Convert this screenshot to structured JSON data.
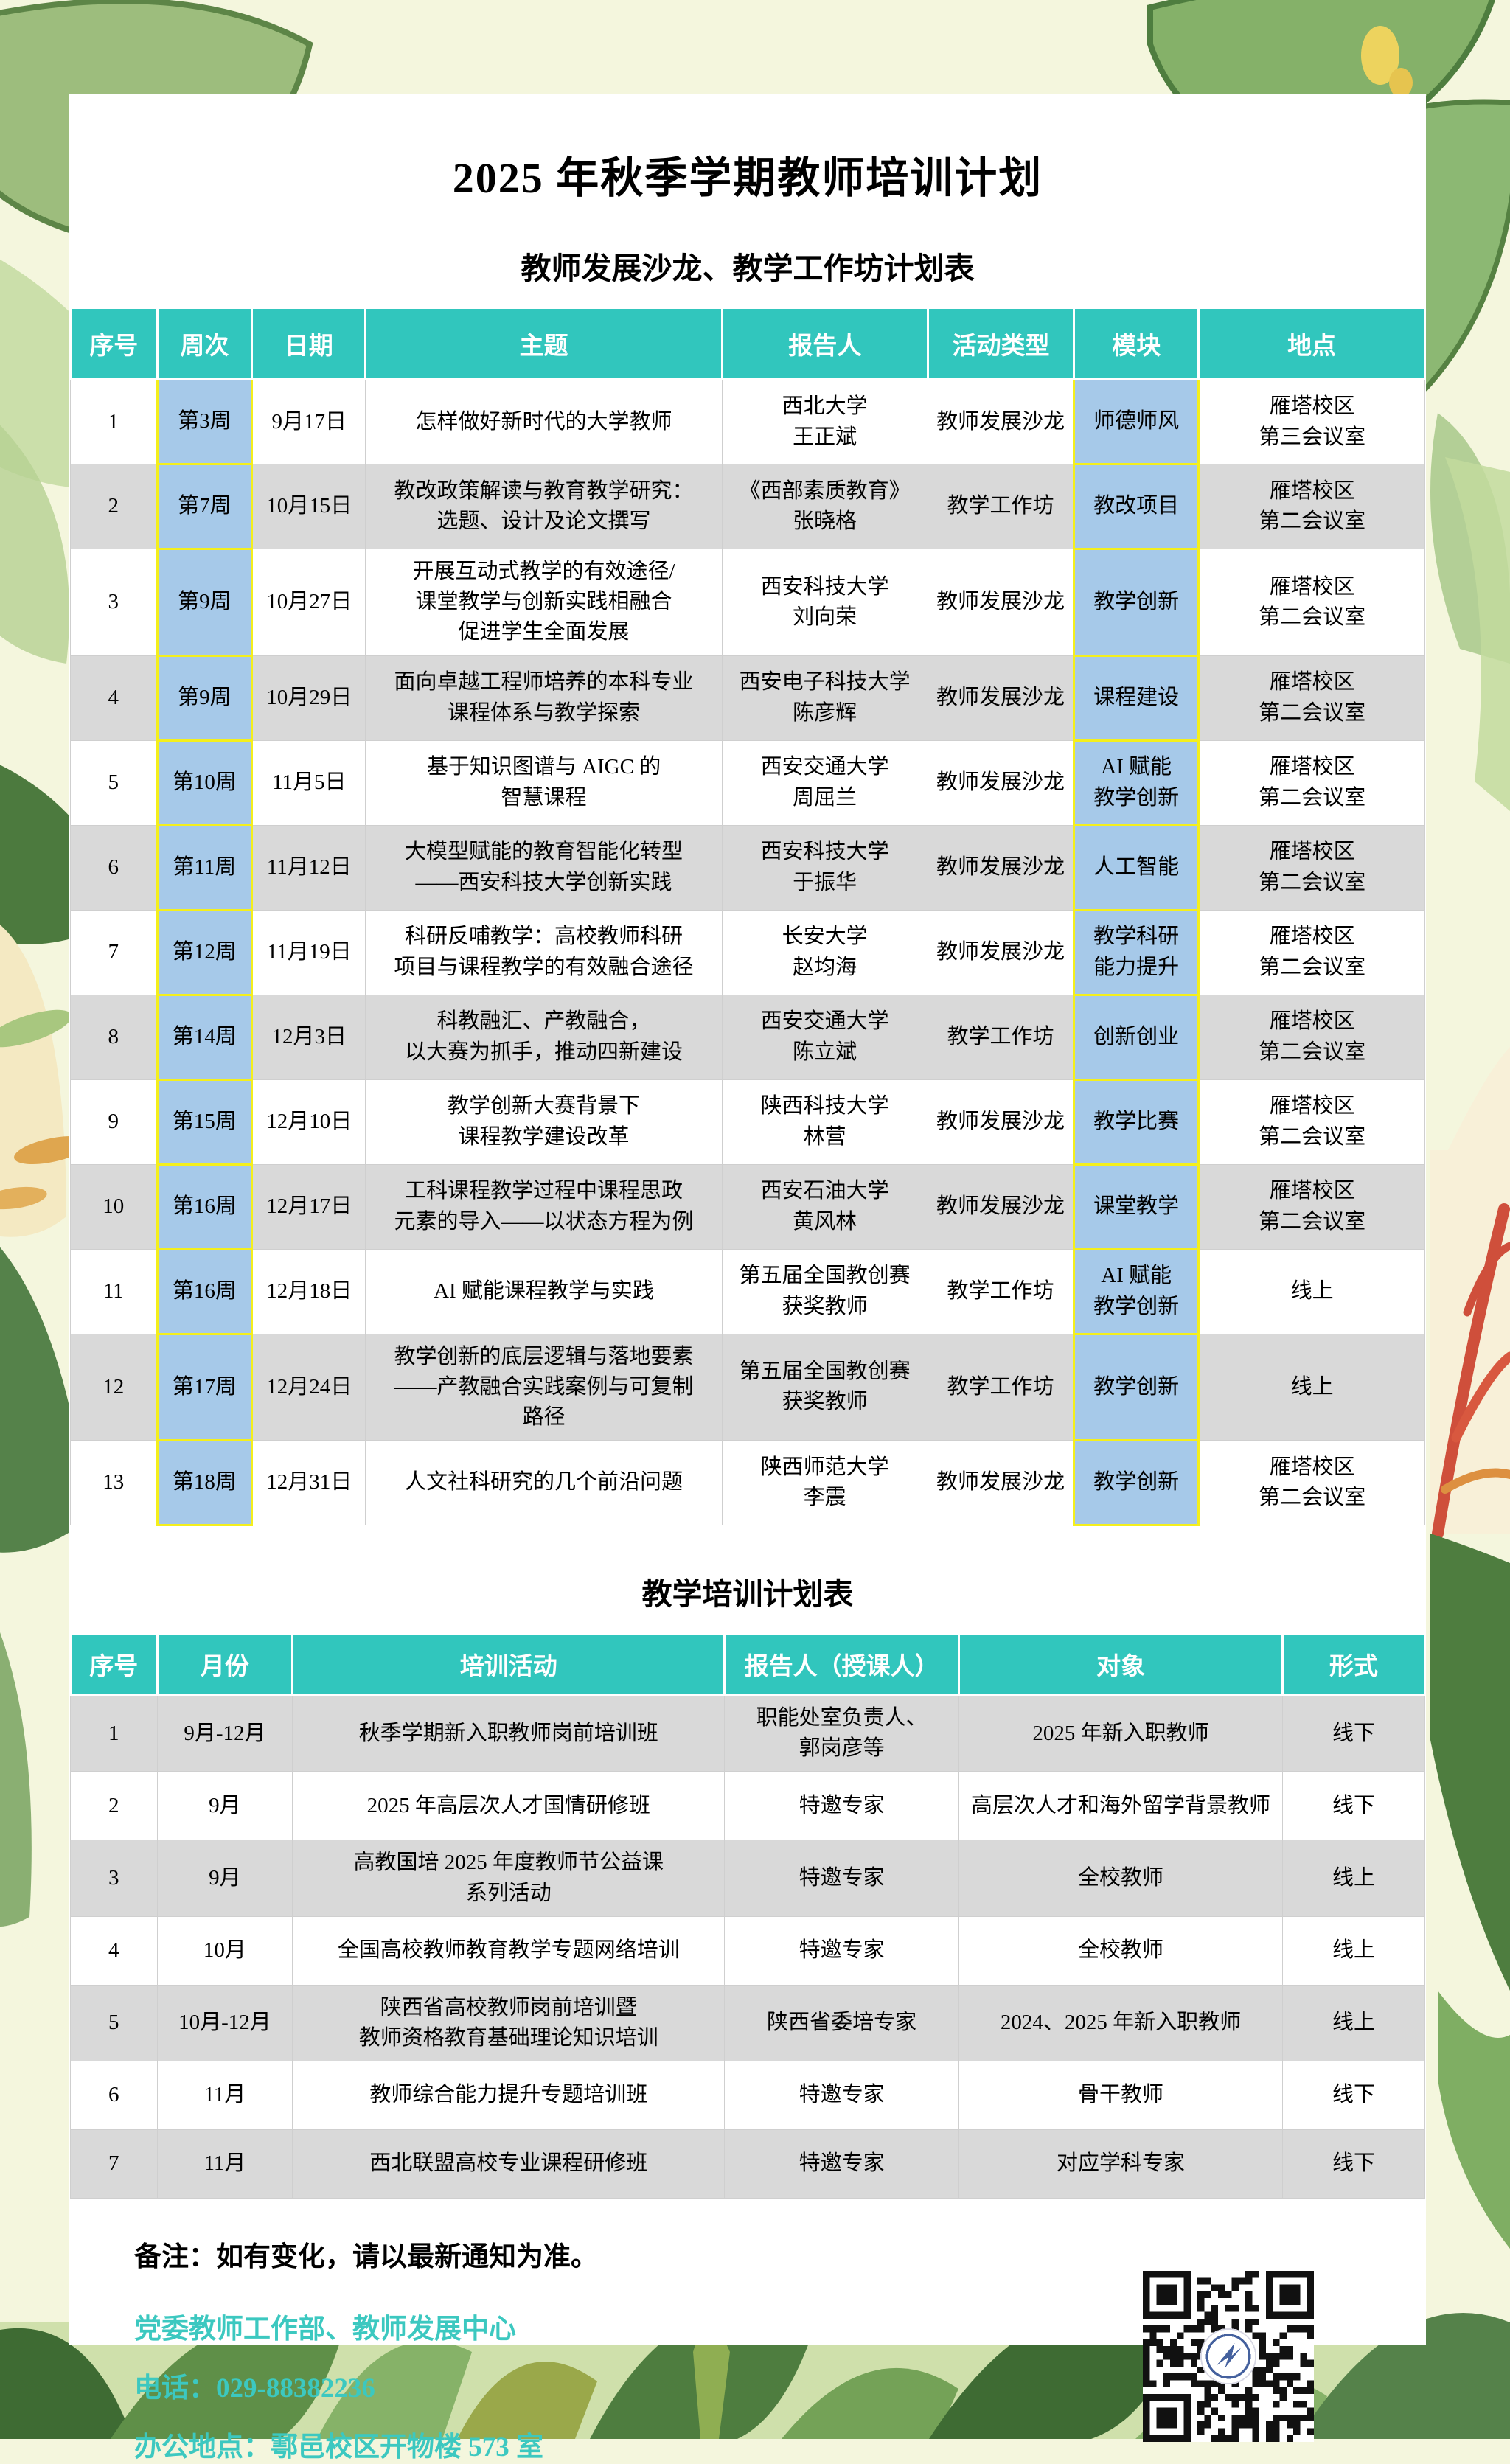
{
  "page_title": "2025 年秋季学期教师培训计划",
  "colors": {
    "header_teal": "#31c6bd",
    "cell_blue": "#a6c9e9",
    "cell_border_yellow": "#f4ef1c",
    "row_gray": "#d9d9d9",
    "footer_teal": "#3cc8c0"
  },
  "table1": {
    "title": "教师发展沙龙、教学工作坊计划表",
    "columns": [
      "序号",
      "周次",
      "日期",
      "主题",
      "报告人",
      "活动类型",
      "模块",
      "地点"
    ],
    "rows": [
      {
        "cells": [
          "1",
          "第3周",
          "9月17日",
          "怎样做好新时代的大学教师",
          "西北大学\n王正斌",
          "教师发展沙龙",
          "师德师风",
          "雁塔校区\n第三会议室"
        ]
      },
      {
        "cells": [
          "2",
          "第7周",
          "10月15日",
          "教改政策解读与教育教学研究：\n选题、设计及论文撰写",
          "《西部素质教育》\n张晓格",
          "教学工作坊",
          "教改项目",
          "雁塔校区\n第二会议室"
        ]
      },
      {
        "cells": [
          "3",
          "第9周",
          "10月27日",
          "开展互动式教学的有效途径/\n课堂教学与创新实践相融合\n促进学生全面发展",
          "西安科技大学\n刘向荣",
          "教师发展沙龙",
          "教学创新",
          "雁塔校区\n第二会议室"
        ]
      },
      {
        "cells": [
          "4",
          "第9周",
          "10月29日",
          "面向卓越工程师培养的本科专业\n课程体系与教学探索",
          "西安电子科技大学\n陈彦辉",
          "教师发展沙龙",
          "课程建设",
          "雁塔校区\n第二会议室"
        ]
      },
      {
        "cells": [
          "5",
          "第10周",
          "11月5日",
          "基于知识图谱与 AIGC 的\n智慧课程",
          "西安交通大学\n周屈兰",
          "教师发展沙龙",
          "AI 赋能\n教学创新",
          "雁塔校区\n第二会议室"
        ]
      },
      {
        "cells": [
          "6",
          "第11周",
          "11月12日",
          "大模型赋能的教育智能化转型\n——西安科技大学创新实践",
          "西安科技大学\n于振华",
          "教师发展沙龙",
          "人工智能",
          "雁塔校区\n第二会议室"
        ]
      },
      {
        "cells": [
          "7",
          "第12周",
          "11月19日",
          "科研反哺教学：高校教师科研\n项目与课程教学的有效融合途径",
          "长安大学\n赵均海",
          "教师发展沙龙",
          "教学科研\n能力提升",
          "雁塔校区\n第二会议室"
        ]
      },
      {
        "cells": [
          "8",
          "第14周",
          "12月3日",
          "科教融汇、产教融合，\n以大赛为抓手，推动四新建设",
          "西安交通大学\n陈立斌",
          "教学工作坊",
          "创新创业",
          "雁塔校区\n第二会议室"
        ]
      },
      {
        "cells": [
          "9",
          "第15周",
          "12月10日",
          "教学创新大赛背景下\n课程教学建设改革",
          "陕西科技大学\n林营",
          "教师发展沙龙",
          "教学比赛",
          "雁塔校区\n第二会议室"
        ]
      },
      {
        "cells": [
          "10",
          "第16周",
          "12月17日",
          "工科课程教学过程中课程思政\n元素的导入——以状态方程为例",
          "西安石油大学\n黄风林",
          "教师发展沙龙",
          "课堂教学",
          "雁塔校区\n第二会议室"
        ]
      },
      {
        "cells": [
          "11",
          "第16周",
          "12月18日",
          "AI 赋能课程教学与实践",
          "第五届全国教创赛\n获奖教师",
          "教学工作坊",
          "AI 赋能\n教学创新",
          "线上"
        ]
      },
      {
        "cells": [
          "12",
          "第17周",
          "12月24日",
          "教学创新的底层逻辑与落地要素\n——产教融合实践案例与可复制\n路径",
          "第五届全国教创赛\n获奖教师",
          "教学工作坊",
          "教学创新",
          "线上"
        ]
      },
      {
        "cells": [
          "13",
          "第18周",
          "12月31日",
          "人文社科研究的几个前沿问题",
          "陕西师范大学\n李震",
          "教师发展沙龙",
          "教学创新",
          "雁塔校区\n第二会议室"
        ]
      }
    ]
  },
  "table2": {
    "title": "教学培训计划表",
    "columns": [
      "序号",
      "月份",
      "培训活动",
      "报告人（授课人）",
      "对象",
      "形式"
    ],
    "rows": [
      {
        "cells": [
          "1",
          "9月-12月",
          "秋季学期新入职教师岗前培训班",
          "职能处室负责人、\n郭岗彦等",
          "2025 年新入职教师",
          "线下"
        ]
      },
      {
        "cells": [
          "2",
          "9月",
          "2025 年高层次人才国情研修班",
          "特邀专家",
          "高层次人才和海外留学背景教师",
          "线下"
        ]
      },
      {
        "cells": [
          "3",
          "9月",
          "高教国培 2025 年度教师节公益课\n系列活动",
          "特邀专家",
          "全校教师",
          "线上"
        ]
      },
      {
        "cells": [
          "4",
          "10月",
          "全国高校教师教育教学专题网络培训",
          "特邀专家",
          "全校教师",
          "线上"
        ]
      },
      {
        "cells": [
          "5",
          "10月-12月",
          "陕西省高校教师岗前培训暨\n教师资格教育基础理论知识培训",
          "陕西省委培专家",
          "2024、2025 年新入职教师",
          "线上"
        ]
      },
      {
        "cells": [
          "6",
          "11月",
          "教师综合能力提升专题培训班",
          "特邀专家",
          "骨干教师",
          "线下"
        ]
      },
      {
        "cells": [
          "7",
          "11月",
          "西北联盟高校专业课程研修班",
          "特邀专家",
          "对应学科专家",
          "线下"
        ]
      }
    ]
  },
  "footer": {
    "note": "备注：如有变化，请以最新通知为准。",
    "dept": "党委教师工作部、教师发展中心",
    "phone": "电话：029-88382236",
    "address": "办公地点：鄠邑校区开物楼 573 室"
  }
}
